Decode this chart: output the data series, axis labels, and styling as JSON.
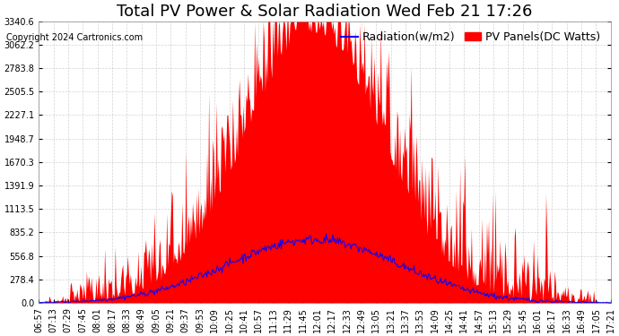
{
  "title": "Total PV Power & Solar Radiation Wed Feb 21 17:26",
  "copyright": "Copyright 2024 Cartronics.com",
  "legend_radiation": "Radiation(w/m2)",
  "legend_pv": "PV Panels(DC Watts)",
  "ymax": 3340.6,
  "ymin": 0.0,
  "yticks": [
    0.0,
    278.4,
    556.8,
    835.2,
    1113.5,
    1391.9,
    1670.3,
    1948.7,
    2227.1,
    2505.5,
    2783.8,
    3062.2,
    3340.6
  ],
  "ytick_labels": [
    "0.0",
    "278.4",
    "556.8",
    "835.2",
    "1113.5",
    "1391.9",
    "1670.3",
    "1948.7",
    "2227.1",
    "2505.5",
    "2783.8",
    "3062.2",
    "3340.6"
  ],
  "xtick_labels": [
    "06:57",
    "07:13",
    "07:29",
    "07:45",
    "08:01",
    "08:17",
    "08:33",
    "08:49",
    "09:05",
    "09:21",
    "09:37",
    "09:53",
    "10:09",
    "10:25",
    "10:41",
    "10:57",
    "11:13",
    "11:29",
    "11:45",
    "12:01",
    "12:17",
    "12:33",
    "12:49",
    "13:05",
    "13:21",
    "13:37",
    "13:53",
    "14:09",
    "14:25",
    "14:41",
    "14:57",
    "15:13",
    "15:29",
    "15:45",
    "16:01",
    "16:17",
    "16:33",
    "16:49",
    "17:05",
    "17:21"
  ],
  "color_pv": "#ff0000",
  "color_radiation": "#0000ff",
  "color_background": "#ffffff",
  "color_grid": "#c0c0c0",
  "color_title": "#000000",
  "color_copyright": "#000000",
  "title_fontsize": 13,
  "tick_fontsize": 7,
  "legend_fontsize": 9
}
